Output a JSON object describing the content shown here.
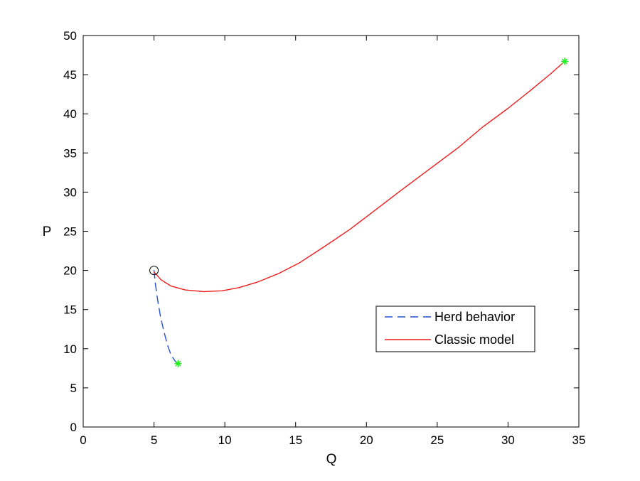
{
  "chart_data": {
    "type": "line",
    "xlabel": "Q",
    "ylabel": "P",
    "xlim": [
      0,
      35
    ],
    "ylim": [
      0,
      50
    ],
    "xticks": [
      0,
      5,
      10,
      15,
      20,
      25,
      30,
      35
    ],
    "yticks": [
      0,
      5,
      10,
      15,
      20,
      25,
      30,
      35,
      40,
      45,
      50
    ],
    "grid": false,
    "legend_position": "lower-right",
    "series": [
      {
        "name": "Herd behavior",
        "color": "#2450d8",
        "style": "dashed",
        "points": [
          [
            5.0,
            20.0
          ],
          [
            5.1,
            18.2
          ],
          [
            5.25,
            16.3
          ],
          [
            5.45,
            14.2
          ],
          [
            5.7,
            12.2
          ],
          [
            5.95,
            10.5
          ],
          [
            6.2,
            9.2
          ],
          [
            6.5,
            8.4
          ],
          [
            6.7,
            8.0
          ]
        ]
      },
      {
        "name": "Classic model",
        "color": "#ee1c1c",
        "style": "solid",
        "points": [
          [
            5.0,
            19.8
          ],
          [
            5.5,
            18.8
          ],
          [
            6.2,
            18.0
          ],
          [
            7.2,
            17.5
          ],
          [
            8.5,
            17.3
          ],
          [
            9.8,
            17.4
          ],
          [
            11.0,
            17.8
          ],
          [
            12.3,
            18.5
          ],
          [
            13.8,
            19.6
          ],
          [
            15.3,
            21.0
          ],
          [
            17.0,
            23.0
          ],
          [
            18.8,
            25.2
          ],
          [
            20.7,
            27.8
          ],
          [
            22.5,
            30.3
          ],
          [
            24.5,
            33.0
          ],
          [
            26.5,
            35.7
          ],
          [
            28.2,
            38.3
          ],
          [
            30.0,
            40.7
          ],
          [
            31.6,
            43.0
          ],
          [
            33.0,
            45.1
          ],
          [
            34.0,
            46.7
          ]
        ]
      }
    ],
    "markers": [
      {
        "type": "circle",
        "color": "#000000",
        "x": 5.0,
        "y": 20.0
      },
      {
        "type": "asterisk",
        "color": "#22ee22",
        "x": 6.7,
        "y": 8.1
      },
      {
        "type": "asterisk",
        "color": "#22ee22",
        "x": 34.0,
        "y": 46.7
      }
    ]
  }
}
